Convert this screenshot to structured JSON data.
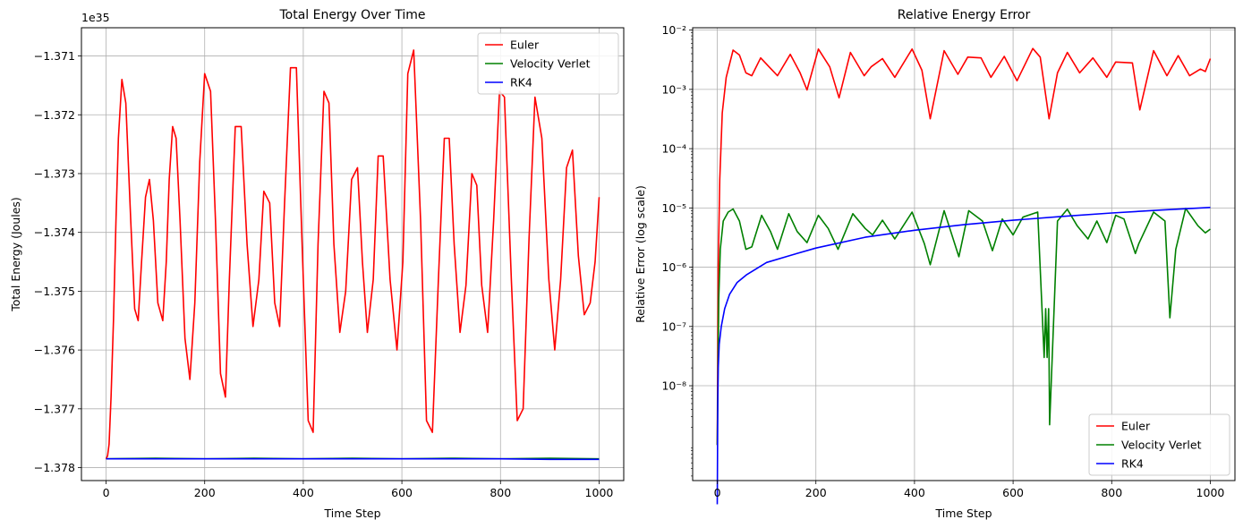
{
  "chart_data": [
    {
      "type": "line",
      "title": "Total Energy Over Time",
      "xlabel": "Time Step",
      "ylabel": "Total Energy (Joules)",
      "offset_label": "1e35",
      "xlim": [
        -50,
        1050
      ],
      "ylim": [
        -1.37822,
        -1.37052
      ],
      "x_ticks": [
        0,
        200,
        400,
        600,
        800,
        1000
      ],
      "x_tick_labels": [
        "0",
        "200",
        "400",
        "600",
        "800",
        "1000"
      ],
      "y_ticks": [
        -1.378,
        -1.377,
        -1.376,
        -1.375,
        -1.374,
        -1.373,
        -1.372,
        -1.371
      ],
      "y_tick_labels": [
        "−1.378",
        "−1.377",
        "−1.376",
        "−1.375",
        "−1.374",
        "−1.373",
        "−1.372",
        "−1.371"
      ],
      "grid": true,
      "legend_position": "top-right",
      "series": [
        {
          "name": "Euler",
          "color": "#ff0000",
          "x": [
            0,
            3,
            6,
            10,
            15,
            20,
            25,
            32,
            40,
            50,
            58,
            65,
            72,
            80,
            88,
            96,
            105,
            115,
            122,
            128,
            135,
            142,
            150,
            160,
            170,
            180,
            190,
            200,
            212,
            222,
            232,
            242,
            250,
            262,
            274,
            286,
            298,
            310,
            320,
            332,
            342,
            352,
            362,
            374,
            386,
            398,
            410,
            420,
            430,
            442,
            452,
            462,
            474,
            486,
            498,
            510,
            520,
            530,
            542,
            552,
            562,
            576,
            590,
            602,
            612,
            624,
            638,
            650,
            662,
            674,
            686,
            696,
            706,
            718,
            730,
            742,
            752,
            762,
            774,
            786,
            798,
            808,
            822,
            834,
            846,
            858,
            870,
            884,
            898,
            910,
            922,
            934,
            946,
            958,
            970,
            982,
            992,
            1000
          ],
          "y": [
            -1.37785,
            -1.3778,
            -1.3776,
            -1.3768,
            -1.3755,
            -1.3738,
            -1.3724,
            -1.3714,
            -1.3718,
            -1.3738,
            -1.3753,
            -1.3755,
            -1.3745,
            -1.3734,
            -1.3731,
            -1.3738,
            -1.3752,
            -1.3755,
            -1.3745,
            -1.3731,
            -1.3722,
            -1.3724,
            -1.3738,
            -1.3758,
            -1.3765,
            -1.3752,
            -1.3728,
            -1.3713,
            -1.3716,
            -1.3738,
            -1.3764,
            -1.3768,
            -1.3748,
            -1.3722,
            -1.3722,
            -1.3742,
            -1.3756,
            -1.3748,
            -1.3733,
            -1.3735,
            -1.3752,
            -1.3756,
            -1.3735,
            -1.3712,
            -1.3712,
            -1.3743,
            -1.3772,
            -1.3774,
            -1.3742,
            -1.3716,
            -1.3718,
            -1.3742,
            -1.3757,
            -1.375,
            -1.3731,
            -1.3729,
            -1.3745,
            -1.3757,
            -1.3748,
            -1.3727,
            -1.3727,
            -1.3748,
            -1.376,
            -1.3745,
            -1.3713,
            -1.3709,
            -1.3738,
            -1.3772,
            -1.3774,
            -1.3748,
            -1.3724,
            -1.3724,
            -1.3742,
            -1.3757,
            -1.3749,
            -1.373,
            -1.3732,
            -1.3749,
            -1.3757,
            -1.3738,
            -1.3716,
            -1.3717,
            -1.3748,
            -1.3772,
            -1.377,
            -1.3741,
            -1.3717,
            -1.3724,
            -1.3748,
            -1.376,
            -1.3748,
            -1.3729,
            -1.3726,
            -1.3744,
            -1.3754,
            -1.3752,
            -1.3745,
            -1.3734
          ]
        },
        {
          "name": "Velocity Verlet",
          "color": "#008000",
          "x": [
            0,
            100,
            200,
            300,
            400,
            500,
            600,
            700,
            800,
            900,
            1000
          ],
          "y": [
            -1.37785,
            -1.37784,
            -1.37785,
            -1.37784,
            -1.37785,
            -1.37784,
            -1.37785,
            -1.37784,
            -1.37785,
            -1.37784,
            -1.37785
          ]
        },
        {
          "name": "RK4",
          "color": "#0000ff",
          "x": [
            0,
            100,
            200,
            300,
            400,
            500,
            600,
            700,
            800,
            900,
            1000
          ],
          "y": [
            -1.37785,
            -1.37785,
            -1.37785,
            -1.37785,
            -1.37785,
            -1.37785,
            -1.37785,
            -1.37785,
            -1.37785,
            -1.37786,
            -1.37786
          ]
        }
      ]
    },
    {
      "type": "line",
      "title": "Relative Energy Error",
      "xlabel": "Time Step",
      "ylabel": "Relative Error (log scale)",
      "y_scale": "log",
      "xlim": [
        -50,
        1050
      ],
      "ylim_log10": [
        -9.6,
        -1.96
      ],
      "x_ticks": [
        0,
        200,
        400,
        600,
        800,
        1000
      ],
      "x_tick_labels": [
        "0",
        "200",
        "400",
        "600",
        "800",
        "1000"
      ],
      "y_tick_exponents": [
        -8,
        -7,
        -6,
        -5,
        -4,
        -3,
        -2
      ],
      "y_tick_labels": [
        "10⁻⁸",
        "10⁻⁷",
        "10⁻⁶",
        "10⁻⁵",
        "10⁻⁴",
        "10⁻³",
        "10⁻²"
      ],
      "grid": true,
      "legend_position": "bottom-right",
      "series": [
        {
          "name": "Euler",
          "color": "#ff0000",
          "x": [
            0,
            2,
            5,
            10,
            18,
            32,
            45,
            58,
            70,
            88,
            105,
            122,
            148,
            168,
            182,
            205,
            228,
            247,
            270,
            298,
            312,
            335,
            360,
            395,
            415,
            432,
            460,
            488,
            508,
            535,
            555,
            582,
            608,
            640,
            655,
            673,
            690,
            710,
            735,
            762,
            790,
            808,
            842,
            857,
            885,
            912,
            935,
            958,
            980,
            990,
            1000
          ],
          "y": [
            1e-09,
            1e-06,
            3e-05,
            0.0004,
            0.0016,
            0.0046,
            0.0038,
            0.0019,
            0.0017,
            0.0034,
            0.0024,
            0.0017,
            0.0039,
            0.0019,
            0.00098,
            0.0048,
            0.0024,
            0.00072,
            0.0042,
            0.0017,
            0.0024,
            0.0033,
            0.0016,
            0.0048,
            0.0021,
            0.00032,
            0.0045,
            0.0018,
            0.0035,
            0.0034,
            0.0016,
            0.0036,
            0.0014,
            0.0049,
            0.0035,
            0.00032,
            0.0019,
            0.0042,
            0.0019,
            0.0034,
            0.0016,
            0.0029,
            0.0028,
            0.00045,
            0.0045,
            0.0017,
            0.0037,
            0.0017,
            0.0022,
            0.002,
            0.0033
          ]
        },
        {
          "name": "Velocity Verlet",
          "color": "#008000",
          "x": [
            0,
            3,
            6,
            12,
            22,
            32,
            45,
            58,
            70,
            90,
            108,
            122,
            145,
            162,
            182,
            205,
            225,
            245,
            275,
            300,
            315,
            335,
            360,
            395,
            420,
            432,
            460,
            490,
            510,
            538,
            558,
            578,
            600,
            620,
            650,
            663,
            666,
            669,
            672,
            674,
            690,
            710,
            730,
            752,
            770,
            790,
            808,
            825,
            848,
            855,
            885,
            908,
            918,
            930,
            950,
            975,
            990,
            1000
          ],
          "y": [
            1e-09,
            3e-07,
            2e-06,
            6e-06,
            8.5e-06,
            9.6e-06,
            6e-06,
            2e-06,
            2.2e-06,
            7.5e-06,
            4e-06,
            2e-06,
            8e-06,
            4e-06,
            2.6e-06,
            7.5e-06,
            4.5e-06,
            2e-06,
            8e-06,
            4.5e-06,
            3.5e-06,
            6.2e-06,
            3e-06,
            8.5e-06,
            2.5e-06,
            1.1e-06,
            9e-06,
            1.5e-06,
            9e-06,
            6e-06,
            1.9e-06,
            6.5e-06,
            3.5e-06,
            7e-06,
            8.5e-06,
            3e-08,
            2e-07,
            3e-08,
            2e-07,
            2.2e-09,
            6e-06,
            9.5e-06,
            5e-06,
            3e-06,
            6e-06,
            2.6e-06,
            7.5e-06,
            6.5e-06,
            1.7e-06,
            2.5e-06,
            8.5e-06,
            6e-06,
            1.4e-07,
            2e-06,
            9.8e-06,
            5e-06,
            3.8e-06,
            4.4e-06
          ]
        },
        {
          "name": "RK4",
          "color": "#0000ff",
          "x": [
            0,
            1,
            2,
            4,
            8,
            15,
            25,
            40,
            60,
            100,
            150,
            200,
            300,
            400,
            500,
            600,
            700,
            800,
            900,
            1000
          ],
          "y": [
            1e-10,
            5e-09,
            2e-08,
            5e-08,
            1e-07,
            2e-07,
            3.5e-07,
            5.5e-07,
            7.5e-07,
            1.2e-06,
            1.6e-06,
            2.1e-06,
            3.2e-06,
            4.2e-06,
            5.2e-06,
            6.2e-06,
            7.2e-06,
            8.2e-06,
            9.2e-06,
            1.02e-05
          ]
        }
      ]
    }
  ]
}
